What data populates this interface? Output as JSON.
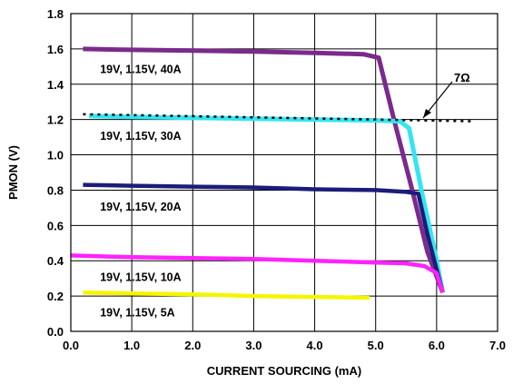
{
  "chart_data": {
    "type": "line",
    "title": "",
    "xlabel": "CURRENT SOURCING (mA)",
    "ylabel": "PMON (V)",
    "xlim": [
      0,
      7
    ],
    "ylim": [
      0,
      1.8
    ],
    "x_ticks": [
      0,
      1,
      2,
      3,
      4,
      5,
      6,
      7
    ],
    "x_tick_labels": [
      "0.0",
      "1.0",
      "2.0",
      "3.0",
      "4.0",
      "5.0",
      "6.0",
      "7.0"
    ],
    "y_ticks": [
      0,
      0.2,
      0.4,
      0.6,
      0.8,
      1.0,
      1.2,
      1.4,
      1.6,
      1.8
    ],
    "y_tick_labels": [
      "0.0",
      "0.2",
      "0.4",
      "0.6",
      "0.8",
      "1.0",
      "1.2",
      "1.4",
      "1.6",
      "1.8"
    ],
    "grid": true,
    "legend": "none",
    "series": [
      {
        "name": "19V, 1.15V, 40A",
        "color": "#7b2a8c",
        "x": [
          0.2,
          1.0,
          2.0,
          3.0,
          4.0,
          4.8,
          5.05,
          5.3,
          5.6,
          5.85,
          6.1
        ],
        "y": [
          1.6,
          1.595,
          1.59,
          1.585,
          1.578,
          1.57,
          1.55,
          1.2,
          0.8,
          0.45,
          0.22
        ]
      },
      {
        "name": "19V, 1.15V, 30A",
        "color": "#33e6f0",
        "x": [
          0.3,
          1.0,
          2.0,
          3.0,
          4.0,
          5.0,
          5.4,
          5.55,
          5.75,
          6.0,
          6.1
        ],
        "y": [
          1.22,
          1.215,
          1.21,
          1.205,
          1.2,
          1.195,
          1.19,
          1.15,
          0.8,
          0.4,
          0.22
        ]
      },
      {
        "name": "19V, 1.15V, 20A",
        "color": "#1c1c7a",
        "x": [
          0.2,
          1.0,
          2.0,
          3.0,
          4.0,
          5.0,
          5.5,
          5.7,
          5.85,
          6.0,
          6.1
        ],
        "y": [
          0.83,
          0.825,
          0.82,
          0.815,
          0.805,
          0.8,
          0.79,
          0.78,
          0.55,
          0.35,
          0.22
        ]
      },
      {
        "name": "19V, 1.15V, 10A",
        "color": "#ff22ff",
        "x": [
          0.0,
          1.0,
          2.0,
          3.0,
          4.0,
          5.0,
          5.5,
          5.8,
          6.0,
          6.1
        ],
        "y": [
          0.43,
          0.42,
          0.415,
          0.41,
          0.4,
          0.39,
          0.385,
          0.37,
          0.33,
          0.22
        ]
      },
      {
        "name": "19V, 1.15V, 5A",
        "color": "#f5f500",
        "x": [
          0.2,
          1.0,
          2.0,
          3.0,
          4.0,
          4.9
        ],
        "y": [
          0.22,
          0.215,
          0.21,
          0.2,
          0.195,
          0.19
        ]
      }
    ],
    "annotations": [
      {
        "text": "7Ω",
        "type": "dotted-line",
        "x": [
          0.2,
          6.6
        ],
        "y": [
          1.23,
          1.19
        ]
      }
    ]
  }
}
